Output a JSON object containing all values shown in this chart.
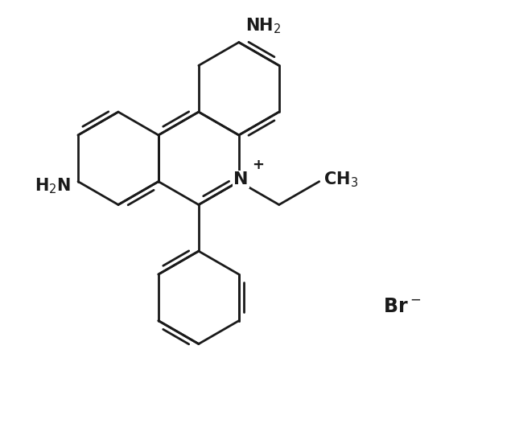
{
  "bg_color": "#ffffff",
  "bond_color": "#1a1a1a",
  "bond_lw": 2.0,
  "font_size_label": 15,
  "font_size_small": 11,
  "figsize": [
    6.4,
    5.32
  ],
  "dpi": 100,
  "xlim": [
    -3.0,
    8.0
  ],
  "ylim": [
    -4.5,
    4.5
  ]
}
